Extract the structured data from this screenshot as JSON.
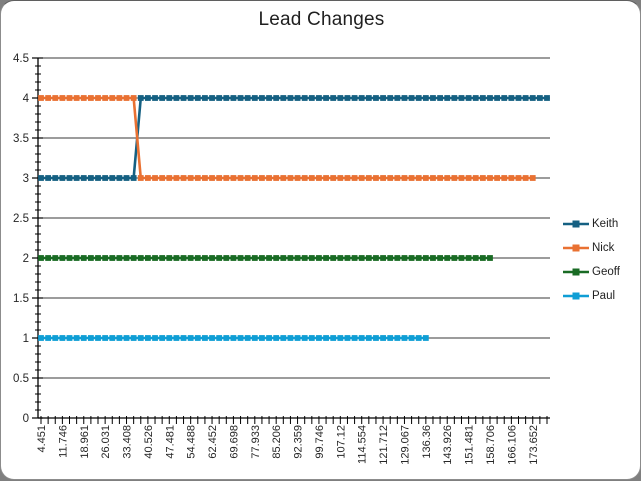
{
  "frame": {
    "page_background": "#7f7f7f",
    "card_background": "#ffffff",
    "card_border": "#8c8c8c"
  },
  "chart_data": {
    "type": "line",
    "title": "Lead Changes",
    "legend_position": "right",
    "grid": "horizontal-major",
    "axis_color": "#000000",
    "gridline_color": "#3a3a3a",
    "text_color": "#262626",
    "marker_shape": "square",
    "y_axis": {
      "min": 0,
      "max": 4.5,
      "major_step": 0.5,
      "minor_step": 0.1,
      "tick_labels": [
        "0",
        "0.5",
        "1",
        "1.5",
        "2",
        "2.5",
        "3",
        "3.5",
        "4",
        "4.5"
      ]
    },
    "x_axis": {
      "total_points": 72,
      "label_interval": 3,
      "label_rotation_degrees": -90,
      "tick_labels": [
        "4.451",
        "11.746",
        "18.961",
        "26.031",
        "33.408",
        "40.526",
        "47.481",
        "54.488",
        "62.452",
        "69.698",
        "77.933",
        "85.206",
        "92.359",
        "99.746",
        "107.12",
        "114.554",
        "121.712",
        "129.067",
        "136.36",
        "143.926",
        "151.481",
        "158.706",
        "166.106",
        "173.652"
      ]
    },
    "series": [
      {
        "name": "Keith",
        "color": "#156082",
        "runs": [
          [
            3,
            14
          ],
          [
            4,
            58
          ]
        ]
      },
      {
        "name": "Nick",
        "color": "#E97132",
        "runs": [
          [
            4,
            14
          ],
          [
            3,
            56
          ]
        ]
      },
      {
        "name": "Geoff",
        "color": "#196B24",
        "runs": [
          [
            2,
            64
          ]
        ]
      },
      {
        "name": "Paul",
        "color": "#0F9ED5",
        "runs": [
          [
            1,
            55
          ]
        ]
      }
    ]
  }
}
